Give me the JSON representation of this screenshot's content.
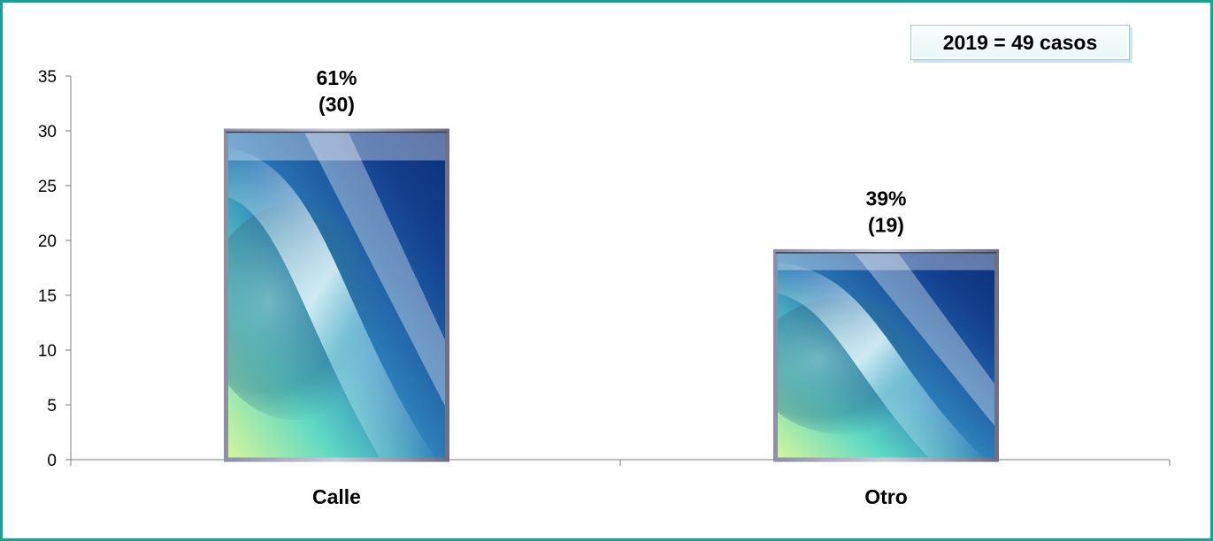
{
  "chart_data": {
    "type": "bar",
    "categories": [
      "Calle",
      "Otro"
    ],
    "values": [
      30,
      19
    ],
    "data_labels": [
      [
        "61%",
        "(30)"
      ],
      [
        "39%",
        "(19)"
      ]
    ],
    "annotation": "2019 = 49 casos",
    "title": "",
    "xlabel": "",
    "ylabel": "",
    "ylim": [
      0,
      35
    ],
    "yticks": [
      0,
      5,
      10,
      15,
      20,
      25,
      30,
      35
    ],
    "grid": false,
    "legend": "none",
    "colors": {
      "frame": "#14a394",
      "bar_dark": "#0b2f78",
      "bar_mid": "#2b7bb8",
      "bar_light": "#9fe6f0",
      "bar_glow": "#d9f59a"
    }
  }
}
